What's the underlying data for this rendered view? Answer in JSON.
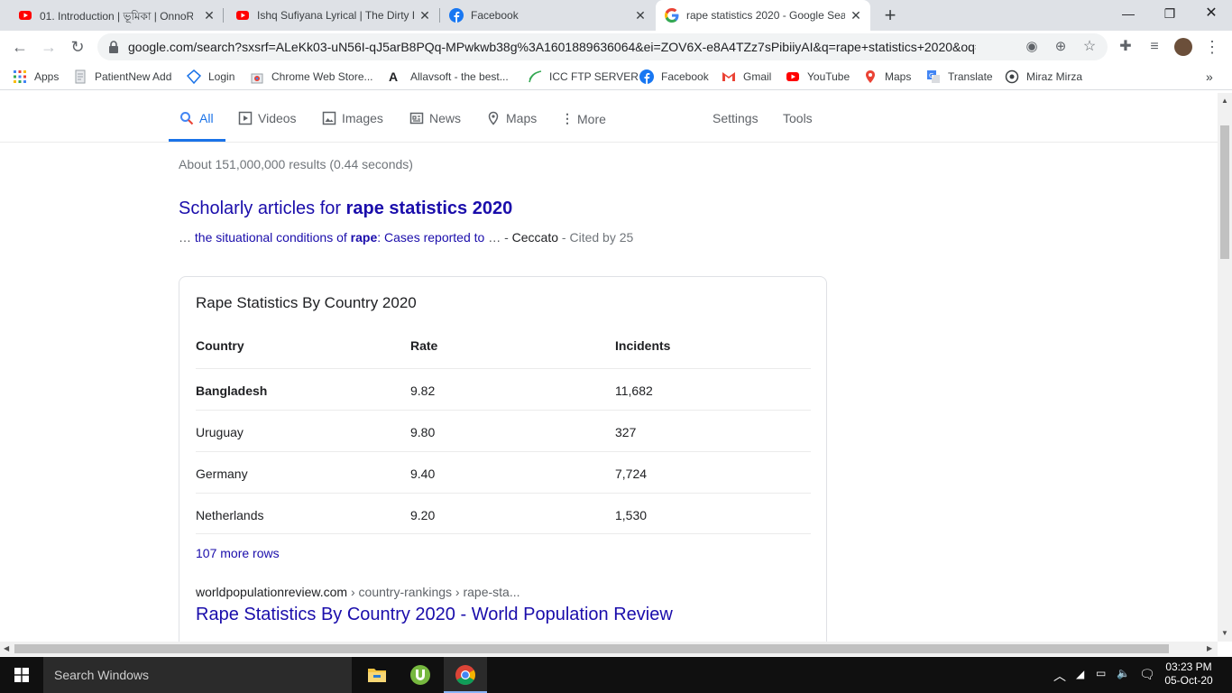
{
  "tabs": [
    {
      "title": "01. Introduction | ভূমিকা | OnnoR",
      "icon": "youtube-icon"
    },
    {
      "title": "Ishq Sufiyana Lyrical | The Dirty P",
      "icon": "youtube-icon"
    },
    {
      "title": "Facebook",
      "icon": "facebook-icon"
    },
    {
      "title": "rape statistics 2020 - Google Sea",
      "icon": "google-icon",
      "active": true
    }
  ],
  "toolbar": {
    "url": "google.com/search?sxsrf=ALeKk03-uN56I-qJ5arB8PQq-MPwkwb38g%3A1601889636064&ei=ZOV6X-e8A4TZz7sPibiiyAI&q=rape+statistics+2020&oq=rape..."
  },
  "bookmarks": [
    {
      "label": "Apps",
      "icon": "apps-grid-icon"
    },
    {
      "label": "PatientNew Add",
      "icon": "page-icon"
    },
    {
      "label": "Login",
      "icon": "diamond-icon"
    },
    {
      "label": "Chrome Web Store...",
      "icon": "chrome-web-store-icon"
    },
    {
      "label": "Allavsoft - the best...",
      "icon": "allavsoft-icon"
    },
    {
      "label": "ICC FTP SERVER",
      "icon": "icc-icon"
    },
    {
      "label": "Facebook",
      "icon": "facebook-icon"
    },
    {
      "label": "Gmail",
      "icon": "gmail-icon"
    },
    {
      "label": "YouTube",
      "icon": "youtube-icon"
    },
    {
      "label": "Maps",
      "icon": "maps-icon"
    },
    {
      "label": "Translate",
      "icon": "translate-icon"
    },
    {
      "label": "Miraz Mirza",
      "icon": "globe-icon"
    }
  ],
  "search_nav": {
    "items": [
      "All",
      "Videos",
      "Images",
      "News",
      "Maps",
      "More"
    ],
    "settings": "Settings",
    "tools": "Tools"
  },
  "result_stats": "About 151,000,000 results (0.44 seconds)",
  "scholar": {
    "title_prefix": "Scholarly articles for ",
    "title_bold": "rape statistics 2020",
    "sub_link1": "the situational conditions of ",
    "sub_bold": "rape",
    "sub_link2": ": Cases reported to ",
    "author": "Ceccato",
    "cited": "Cited by 25"
  },
  "snippet": {
    "title": "Rape Statistics By Country 2020",
    "columns": [
      "Country",
      "Rate",
      "Incidents"
    ],
    "rows": [
      {
        "country": "Bangladesh",
        "rate": "9.82",
        "incidents": "11,682"
      },
      {
        "country": "Uruguay",
        "rate": "9.80",
        "incidents": "327"
      },
      {
        "country": "Germany",
        "rate": "9.40",
        "incidents": "7,724"
      },
      {
        "country": "Netherlands",
        "rate": "9.20",
        "incidents": "1,530"
      }
    ],
    "more_rows": "107 more rows",
    "cite_domain": "worldpopulationreview.com",
    "cite_path": " › country-rankings › rape-sta...",
    "link_title": "Rape Statistics By Country 2020 - World Population Review"
  },
  "taskbar": {
    "search_placeholder": "Search Windows",
    "time": "03:23 PM",
    "date": "05-Oct-20"
  },
  "colors": {
    "link": "#1a0dab",
    "accent": "#1a73e8"
  }
}
